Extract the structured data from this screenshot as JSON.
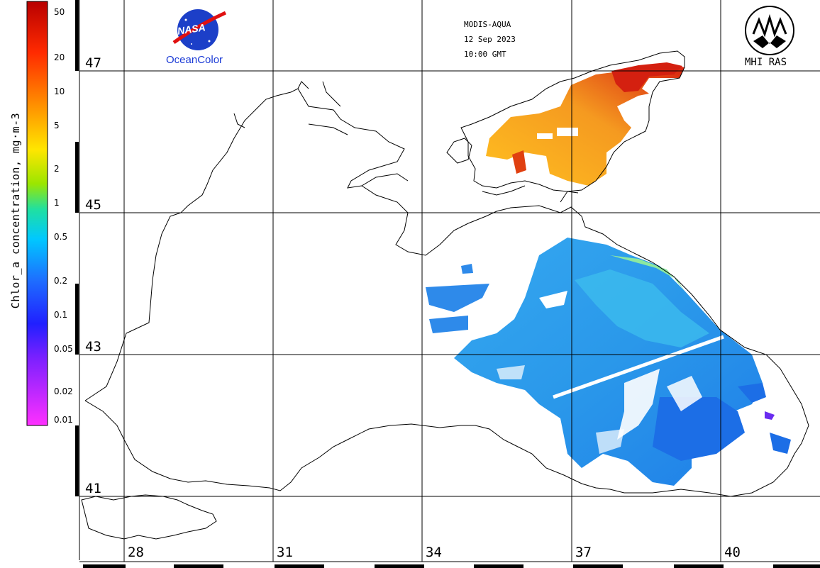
{
  "source": {
    "sensor": "MODIS-AQUA",
    "date": "12 Sep 2023",
    "time": "10:00 GMT"
  },
  "logos": {
    "nasa_text": "NASA",
    "oceancolor_text": "OceanColor",
    "mhi_text": "MHI RAS"
  },
  "colorbar": {
    "title": "Chlor_a concentration, mg·m-3",
    "scale": "log",
    "range": [
      0.01,
      60
    ],
    "ticks": [
      "50",
      "20",
      "10",
      "5",
      "2",
      "1",
      "0.5",
      "0.2",
      "0.1",
      "0.05",
      "0.02",
      "0.01"
    ]
  },
  "grid": {
    "latitudes": [
      "47",
      "45",
      "43",
      "41"
    ],
    "longitudes": [
      "28",
      "31",
      "34",
      "37",
      "40"
    ]
  },
  "colors": {
    "coastline": "#000000",
    "grid": "#000000",
    "high_chl": "#d21818",
    "mid_chl": "#f4a020",
    "low_chl": "#1e8ee8"
  }
}
